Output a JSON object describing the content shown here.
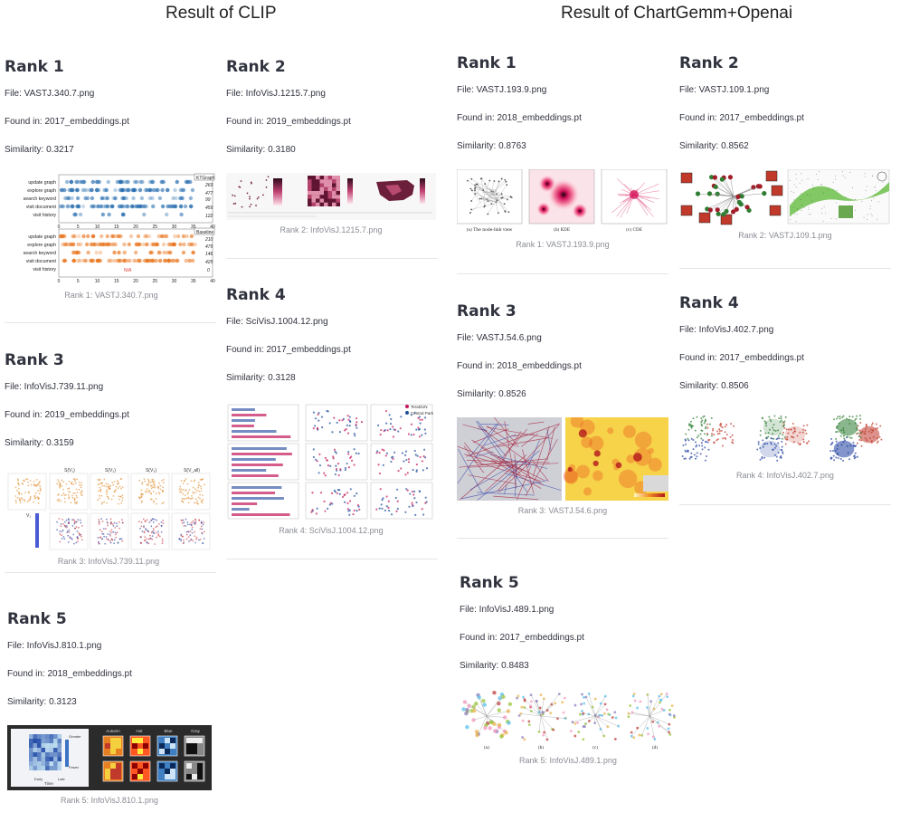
{
  "left": {
    "title": "Result of CLIP",
    "results": [
      {
        "rank": "Rank 1",
        "file": "File: VASTJ.340.7.png",
        "found": "Found in: 2017_embeddings.pt",
        "similarity": "Similarity: 0.3217",
        "caption": "Rank 1: VASTJ.340.7.png",
        "thumb": {
          "top_legend": "KTGraph",
          "bottom_legend": "Baseline",
          "rows": [
            "update graph",
            "explore graph",
            "search keyword",
            "visit document",
            "visit history"
          ],
          "top_counts": [
            "269",
            "477",
            "99",
            "459",
            "122"
          ],
          "bottom_counts": [
            "210",
            "475",
            "146",
            "425",
            "0"
          ],
          "na": "N/A",
          "ticks": [
            "0",
            "5",
            "10",
            "15",
            "20",
            "25",
            "30",
            "35",
            "40"
          ]
        }
      },
      {
        "rank": "Rank 2",
        "file": "File: InfoVisJ.1215.7.png",
        "found": "Found in: 2019_embeddings.pt",
        "similarity": "Similarity: 0.3180",
        "caption": "Rank 2: InfoVisJ.1215.7.png"
      },
      {
        "rank": "Rank 3",
        "file": "File: InfoVisJ.739.11.png",
        "found": "Found in: 2019_embeddings.pt",
        "similarity": "Similarity: 0.3159",
        "caption": "Rank 3: InfoVisJ.739.11.png",
        "thumb": {
          "col_labels": [
            "S(V₁)",
            "S(V₂)",
            "S(V₃)",
            "S(V_all)"
          ],
          "row_label": "V₁"
        }
      },
      {
        "rank": "Rank 4",
        "file": "File: SciVisJ.1004.12.png",
        "found": "Found in: 2017_embeddings.pt",
        "similarity": "Similarity: 0.3128",
        "caption": "Rank 4: SciVisJ.1004.12.png",
        "thumb": {
          "legend": [
            "TeraDUN",
            "Central Park"
          ]
        }
      },
      {
        "rank": "Rank 5",
        "file": "File: InfoVisJ.810.1.png",
        "found": "Found in: 2018_embeddings.pt",
        "similarity": "Similarity: 0.3123",
        "caption": "Rank 5: InfoVisJ.810.1.png",
        "thumb": {
          "swatch_labels": [
            "Autumn",
            "Hot",
            "Blue",
            "Gray"
          ],
          "axis_label": "Time",
          "x_labels": [
            "Early",
            "Late"
          ],
          "scale_labels": [
            "Greater",
            "Fewer"
          ]
        }
      }
    ]
  },
  "right": {
    "title": "Result of ChartGemm+Openai",
    "results": [
      {
        "rank": "Rank 1",
        "file": "File: VASTJ.193.9.png",
        "found": "Found in: 2018_embeddings.pt",
        "similarity": "Similarity: 0.8763",
        "caption": "Rank 1: VASTJ.193.9.png",
        "thumb": {
          "subcaptions": [
            "(a) The node-link view",
            "(b) KDE",
            "(c) CDE"
          ]
        }
      },
      {
        "rank": "Rank 2",
        "file": "File: VASTJ.109.1.png",
        "found": "Found in: 2017_embeddings.pt",
        "similarity": "Similarity: 0.8562",
        "caption": "Rank 2: VASTJ.109.1.png"
      },
      {
        "rank": "Rank 3",
        "file": "File: VASTJ.54.6.png",
        "found": "Found in: 2018_embeddings.pt",
        "similarity": "Similarity: 0.8526",
        "caption": "Rank 3: VASTJ.54.6.png"
      },
      {
        "rank": "Rank 4",
        "file": "File: InfoVisJ.402.7.png",
        "found": "Found in: 2017_embeddings.pt",
        "similarity": "Similarity: 0.8506",
        "caption": "Rank 4: InfoVisJ.402.7.png"
      },
      {
        "rank": "Rank 5",
        "file": "File: InfoVisJ.489.1.png",
        "found": "Found in: 2017_embeddings.pt",
        "similarity": "Similarity: 0.8483",
        "caption": "Rank 5: InfoVisJ.489.1.png",
        "thumb": {
          "subcaptions": [
            "(a)",
            "(b)",
            "(c)",
            "(d)"
          ]
        }
      }
    ]
  }
}
